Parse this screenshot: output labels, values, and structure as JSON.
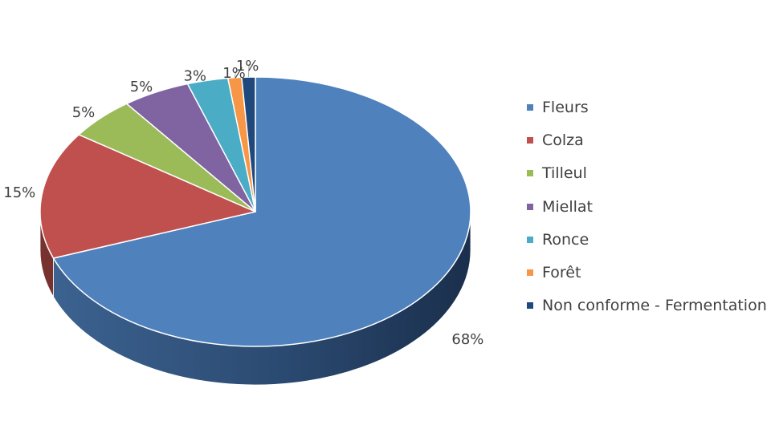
{
  "chart_data": {
    "type": "pie",
    "style": "3d",
    "legend_position": "right",
    "categories": [
      "Fleurs",
      "Colza",
      "Tilleul",
      "Miellat",
      "Ronce",
      "Forêt",
      "Non conforme - Fermentation"
    ],
    "values": [
      68,
      15,
      5,
      5,
      3,
      1,
      1
    ],
    "data_labels": [
      "68%",
      "15%",
      "5%",
      "5%",
      "3%",
      "1%",
      "1%"
    ],
    "colors": [
      "#4F81BD",
      "#C0504D",
      "#9BBB59",
      "#8064A2",
      "#4BACC6",
      "#F79646",
      "#1F497D"
    ]
  }
}
